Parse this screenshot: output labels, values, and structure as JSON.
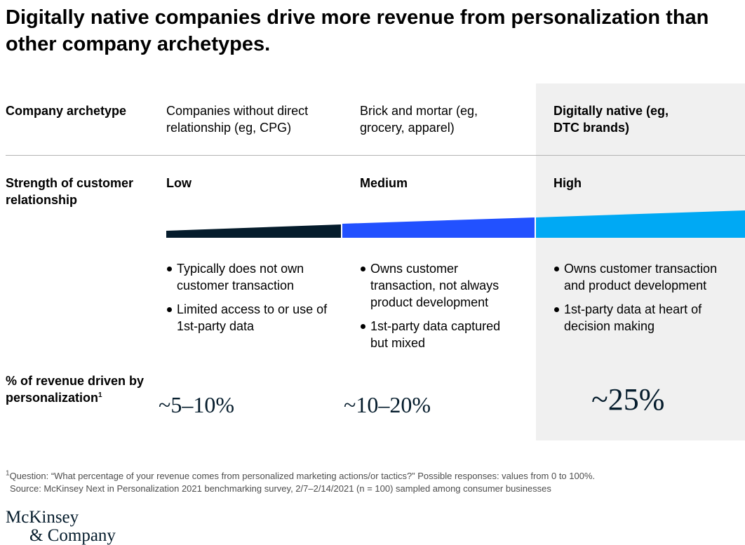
{
  "title": "Digitally native companies drive more revenue from personalization than other company archetypes.",
  "rows": {
    "archetype_label": "Company archetype",
    "strength_label": "Strength of customer relationship",
    "revenue_label": "% of revenue driven by personalization",
    "revenue_label_sup": "1"
  },
  "columns": [
    {
      "archetype": "Companies without direct relationship (eg, CPG)",
      "strength": "Low",
      "strength_level": 1,
      "bullets": [
        "Typically does not own customer transaction",
        "Limited access to or use of 1st-party data"
      ],
      "revenue": "~5–10%",
      "bar_color": "#051c2c"
    },
    {
      "archetype": "Brick and mortar (eg, grocery, apparel)",
      "strength": "Medium",
      "strength_level": 2,
      "bullets": [
        "Owns customer transaction, not always product development",
        "1st-party data captured but mixed"
      ],
      "revenue": "~10–20%",
      "bar_color": "#2251ff"
    },
    {
      "archetype": "Digitally native (eg, DTC brands)",
      "strength": "High",
      "strength_level": 3,
      "bullets": [
        "Owns customer transaction and product development",
        "1st-party data at heart of decision making"
      ],
      "revenue": "~25%",
      "bar_color": "#00a9f4",
      "highlighted": true
    }
  ],
  "footnote": {
    "sup": "1",
    "question": "Question: “What percentage of your revenue comes from personalized marketing actions/or tactics?” Possible responses: values from 0 to 100%.",
    "source": "Source: McKinsey Next in Personalization 2021 benchmarking survey, 2/7–2/14/2021 (n = 100) sampled among consumer businesses"
  },
  "logo": {
    "line1": "McKinsey",
    "line2": "& Company"
  }
}
